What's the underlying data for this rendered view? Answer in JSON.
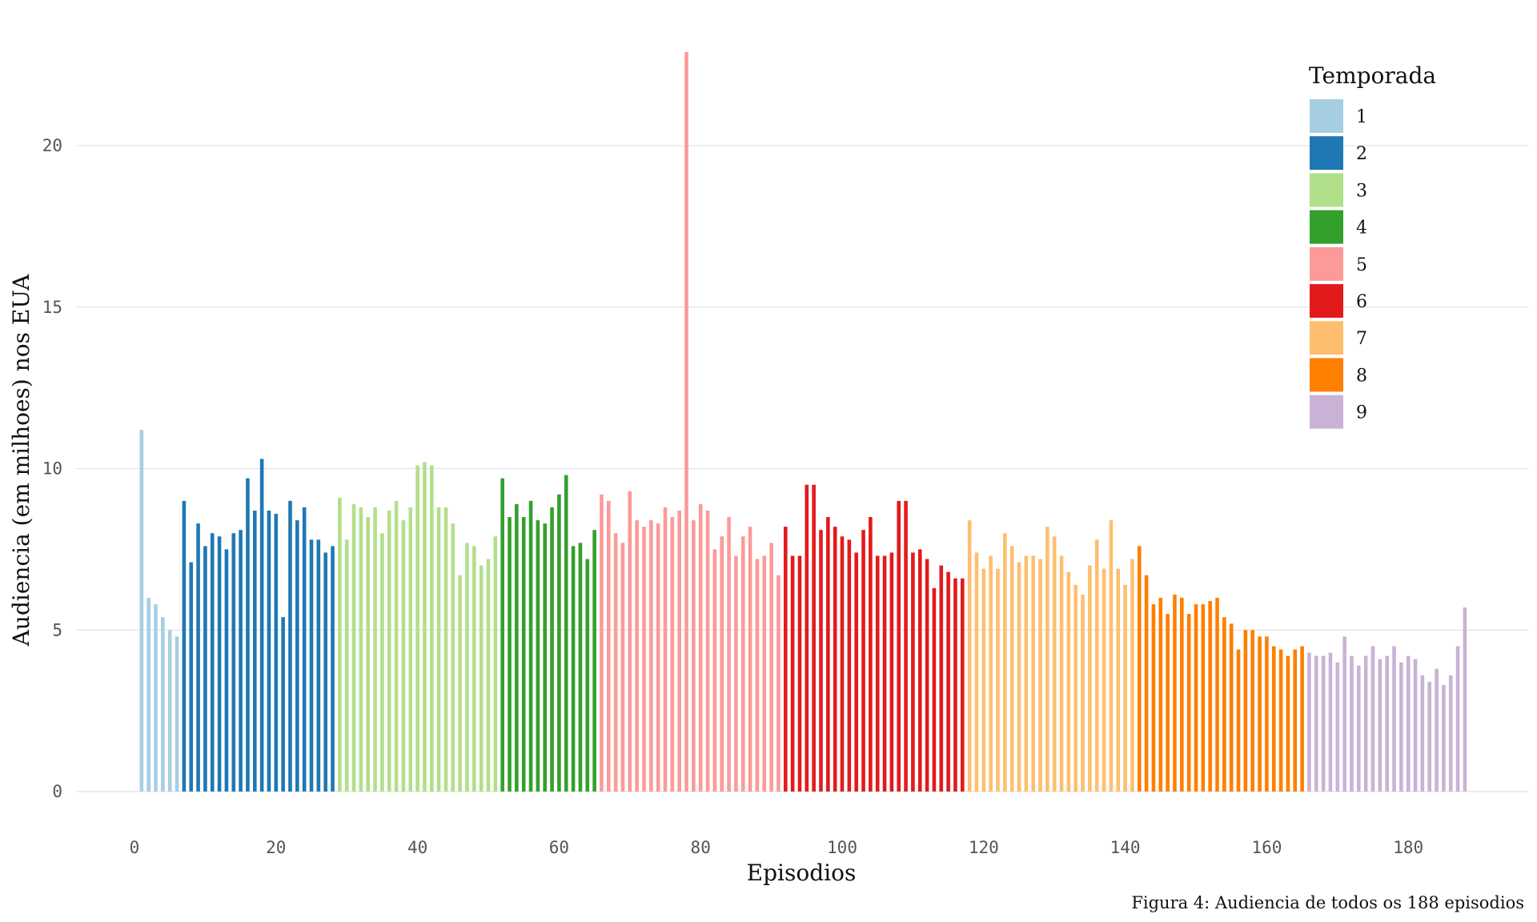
{
  "chart_data": {
    "type": "bar",
    "xlabel": "Episodios",
    "ylabel": "Audiencia (em milhoes) nos EUA",
    "ylim": [
      0,
      23
    ],
    "xlim": [
      0,
      190
    ],
    "y_ticks": [
      0,
      5,
      10,
      15,
      20
    ],
    "x_ticks": [
      0,
      20,
      40,
      60,
      80,
      100,
      120,
      140,
      160,
      180
    ],
    "grid": "horizontal major",
    "legend": {
      "title": "Temporada",
      "position": "top-right"
    },
    "seasons": [
      {
        "name": "1",
        "color": "#a6cee3",
        "episodes": [
          1,
          2,
          3,
          4,
          5,
          6
        ],
        "values": [
          11.2,
          6.0,
          5.8,
          5.4,
          5.0,
          4.8
        ]
      },
      {
        "name": "2",
        "color": "#1f78b4",
        "episodes": [
          7,
          8,
          9,
          10,
          11,
          12,
          13,
          14,
          15,
          16,
          17,
          18,
          19,
          20,
          21,
          22,
          23,
          24,
          25,
          26,
          27,
          28
        ],
        "values": [
          9.0,
          7.1,
          8.3,
          7.6,
          8.0,
          7.9,
          7.5,
          8.0,
          8.1,
          9.7,
          8.7,
          10.3,
          8.7,
          8.6,
          5.4,
          9.0,
          8.4,
          8.8,
          7.8,
          7.8,
          7.4,
          7.6
        ]
      },
      {
        "name": "3",
        "color": "#b2df8a",
        "episodes": [
          29,
          30,
          31,
          32,
          33,
          34,
          35,
          36,
          37,
          38,
          39,
          40,
          41,
          42,
          43,
          44,
          45,
          46,
          47,
          48,
          49,
          50,
          51
        ],
        "values": [
          9.1,
          7.8,
          8.9,
          8.8,
          8.5,
          8.8,
          8.0,
          8.7,
          9.0,
          8.4,
          8.8,
          10.1,
          10.2,
          10.1,
          8.8,
          8.8,
          8.3,
          6.7,
          7.7,
          7.6,
          7.0,
          7.2,
          7.9
        ]
      },
      {
        "name": "4",
        "color": "#33a02c",
        "episodes": [
          52,
          53,
          54,
          55,
          56,
          57,
          58,
          59,
          60,
          61,
          62,
          63,
          64,
          65
        ],
        "values": [
          9.7,
          8.5,
          8.9,
          8.5,
          9.0,
          8.4,
          8.3,
          8.8,
          9.2,
          9.8,
          7.6,
          7.7,
          7.2,
          8.1
        ]
      },
      {
        "name": "5",
        "color": "#fb9a99",
        "episodes": [
          66,
          67,
          68,
          69,
          70,
          71,
          72,
          73,
          74,
          75,
          76,
          77,
          78,
          79,
          80,
          81,
          82,
          83,
          84,
          85,
          86,
          87,
          88,
          89,
          90,
          91
        ],
        "values": [
          9.2,
          9.0,
          8.0,
          7.7,
          9.3,
          8.4,
          8.2,
          8.4,
          8.3,
          8.8,
          8.5,
          8.7,
          22.9,
          8.4,
          8.9,
          8.7,
          7.5,
          7.9,
          8.5,
          7.3,
          7.9,
          8.2,
          7.2,
          7.3,
          7.7,
          6.7
        ]
      },
      {
        "name": "6",
        "color": "#e31a1c",
        "episodes": [
          92,
          93,
          94,
          95,
          96,
          97,
          98,
          99,
          100,
          101,
          102,
          103,
          104,
          105,
          106,
          107,
          108,
          109,
          110,
          111,
          112,
          113,
          114,
          115,
          116,
          117
        ],
        "values": [
          8.2,
          7.3,
          7.3,
          9.5,
          9.5,
          8.1,
          8.5,
          8.2,
          7.9,
          7.8,
          7.4,
          8.1,
          8.5,
          7.3,
          7.3,
          7.4,
          9.0,
          9.0,
          7.4,
          7.5,
          7.2,
          6.3,
          7.0,
          6.8,
          6.6,
          6.6
        ]
      },
      {
        "name": "7",
        "color": "#fdbf6f",
        "episodes": [
          118,
          119,
          120,
          121,
          122,
          123,
          124,
          125,
          126,
          127,
          128,
          129,
          130,
          131,
          132,
          133,
          134,
          135,
          136,
          137,
          138,
          139,
          140,
          141
        ],
        "values": [
          8.4,
          7.4,
          6.9,
          7.3,
          6.9,
          8.0,
          7.6,
          7.1,
          7.3,
          7.3,
          7.2,
          8.2,
          7.9,
          7.3,
          6.8,
          6.4,
          6.1,
          7.0,
          7.8,
          6.9,
          8.4,
          6.9,
          6.4,
          7.2
        ]
      },
      {
        "name": "8",
        "color": "#ff7f00",
        "episodes": [
          142,
          143,
          144,
          145,
          146,
          147,
          148,
          149,
          150,
          151,
          152,
          153,
          154,
          155,
          156,
          157,
          158,
          159,
          160,
          161,
          162,
          163,
          164,
          165
        ],
        "values": [
          7.6,
          6.7,
          5.8,
          6.0,
          5.5,
          6.1,
          6.0,
          5.5,
          5.8,
          5.8,
          5.9,
          6.0,
          5.4,
          5.2,
          4.4,
          5.0,
          5.0,
          4.8,
          4.8,
          4.5,
          4.4,
          4.2,
          4.4,
          4.5
        ]
      },
      {
        "name": "9",
        "color": "#cab2d6",
        "episodes": [
          166,
          167,
          168,
          169,
          170,
          171,
          172,
          173,
          174,
          175,
          176,
          177,
          178,
          179,
          180,
          181,
          182,
          183,
          184,
          185,
          186,
          187,
          188
        ],
        "values": [
          4.3,
          4.2,
          4.2,
          4.3,
          4.0,
          4.8,
          4.2,
          3.9,
          4.2,
          4.5,
          4.1,
          4.2,
          4.5,
          4.0,
          4.2,
          4.1,
          3.6,
          3.4,
          3.8,
          3.3,
          3.6,
          4.5,
          5.7
        ]
      }
    ]
  },
  "caption": "Figura 4: Audiencia de todos os 188 episodios"
}
